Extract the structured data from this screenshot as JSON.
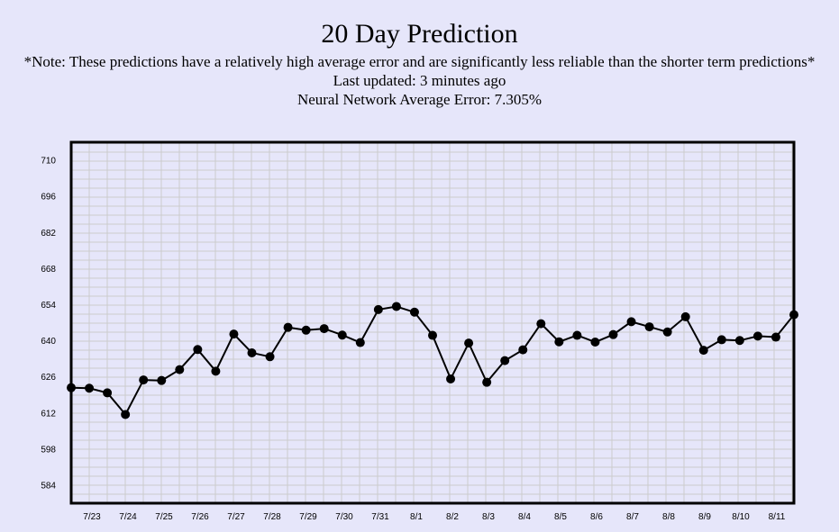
{
  "header": {
    "title": "20 Day Prediction",
    "note": "*Note: These predictions have a relatively high average error and are significantly less reliable than the shorter term predictions*",
    "last_updated": "Last updated: 3 minutes ago",
    "average_error": "Neural Network Average Error: 7.305%"
  },
  "colors": {
    "background": "#e6e6fa",
    "grid": "#cccccc",
    "line": "#000000",
    "frame": "#000000"
  },
  "chart_data": {
    "type": "line",
    "title": "",
    "xlabel": "",
    "ylabel": "",
    "grid": true,
    "ylim": [
      577,
      717
    ],
    "yticks": [
      584,
      598,
      612,
      626,
      640,
      654,
      668,
      682,
      696,
      710
    ],
    "xticks": [
      "7/23",
      "7/24",
      "7/25",
      "7/26",
      "7/27",
      "7/28",
      "7/29",
      "7/30",
      "7/31",
      "8/1",
      "8/2",
      "8/3",
      "8/4",
      "8/5",
      "8/6",
      "8/7",
      "8/8",
      "8/9",
      "8/10",
      "8/11"
    ],
    "series": [
      {
        "values": [
          621.8,
          621.6,
          619.8,
          611.4,
          624.8,
          624.6,
          628.8,
          636.6,
          628.2,
          642.6,
          635.3,
          633.8,
          645.2,
          644.1,
          644.7,
          642.2,
          639.3,
          652.1,
          653.3,
          651.1,
          642.1,
          625.2,
          639.1,
          623.9,
          632.3,
          636.5,
          646.6,
          639.6,
          642.1,
          639.5,
          642.4,
          647.4,
          645.4,
          643.4,
          649.3,
          636.3,
          640.4,
          640.1,
          641.8,
          641.4,
          650.1
        ]
      }
    ]
  }
}
